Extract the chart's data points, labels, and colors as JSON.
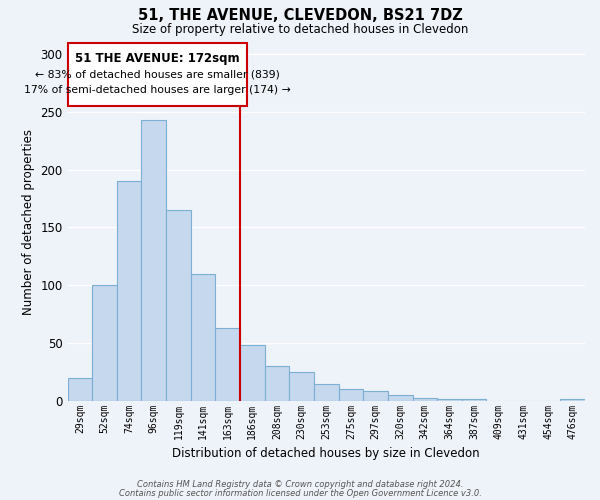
{
  "title": "51, THE AVENUE, CLEVEDON, BS21 7DZ",
  "subtitle": "Size of property relative to detached houses in Clevedon",
  "xlabel": "Distribution of detached houses by size in Clevedon",
  "ylabel": "Number of detached properties",
  "bar_color": "#c5d8ee",
  "bar_edge_color": "#7bafd4",
  "categories": [
    "29sqm",
    "52sqm",
    "74sqm",
    "96sqm",
    "119sqm",
    "141sqm",
    "163sqm",
    "186sqm",
    "208sqm",
    "230sqm",
    "253sqm",
    "275sqm",
    "297sqm",
    "320sqm",
    "342sqm",
    "364sqm",
    "387sqm",
    "409sqm",
    "431sqm",
    "454sqm",
    "476sqm"
  ],
  "values": [
    20,
    100,
    190,
    243,
    165,
    110,
    63,
    48,
    30,
    25,
    14,
    10,
    8,
    5,
    2,
    1,
    1,
    0,
    0,
    0,
    1
  ],
  "ylim": [
    0,
    310
  ],
  "yticks": [
    0,
    50,
    100,
    150,
    200,
    250,
    300
  ],
  "vline_color": "#cc0000",
  "annotation_title": "51 THE AVENUE: 172sqm",
  "annotation_line1": "← 83% of detached houses are smaller (839)",
  "annotation_line2": "17% of semi-detached houses are larger (174) →",
  "annotation_box_color": "#ffffff",
  "annotation_box_edge": "#cc0000",
  "footer1": "Contains HM Land Registry data © Crown copyright and database right 2024.",
  "footer2": "Contains public sector information licensed under the Open Government Licence v3.0.",
  "background_color": "#eef2f9",
  "grid_color": "#ffffff"
}
